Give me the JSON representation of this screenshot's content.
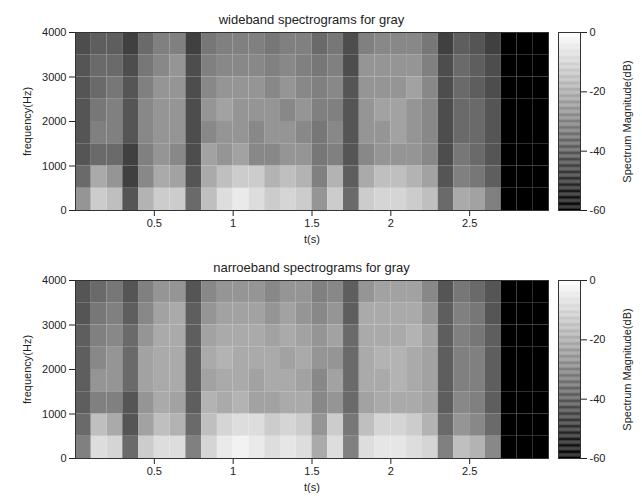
{
  "chart_data": [
    {
      "type": "heatmap",
      "title": "wideband spectrograms for gray",
      "x_label": "t(s)",
      "y_label": "frequency(Hz)",
      "xlim": [
        0,
        3
      ],
      "ylim": [
        0,
        4000
      ],
      "xticks": [
        0.5,
        1,
        1.5,
        2,
        2.5
      ],
      "yticks": [
        0,
        1000,
        2000,
        3000,
        4000
      ],
      "t_bins": [
        0,
        0.1,
        0.2,
        0.3,
        0.4,
        0.5,
        0.6,
        0.7,
        0.8,
        0.9,
        1,
        1.1,
        1.2,
        1.3,
        1.4,
        1.5,
        1.6,
        1.7,
        1.8,
        1.9,
        2,
        2.1,
        2.2,
        2.3,
        2.4,
        2.5,
        2.6,
        2.7,
        2.8,
        2.9,
        3
      ],
      "f_bins": [
        0,
        500,
        1000,
        1500,
        2000,
        2500,
        3000,
        3500,
        4000
      ],
      "cells": [
        [
          -25,
          -35,
          -40,
          -40,
          -40,
          -40,
          -40,
          -42
        ],
        [
          -12,
          -20,
          -35,
          -30,
          -32,
          -35,
          -35,
          -38
        ],
        [
          -15,
          -25,
          -35,
          -30,
          -30,
          -32,
          -35,
          -38
        ],
        [
          -40,
          -45,
          -45,
          -40,
          -40,
          -40,
          -42,
          -45
        ],
        [
          -18,
          -28,
          -30,
          -28,
          -28,
          -30,
          -32,
          -35
        ],
        [
          -12,
          -20,
          -25,
          -25,
          -25,
          -25,
          -28,
          -30
        ],
        [
          -12,
          -22,
          -28,
          -25,
          -25,
          -25,
          -25,
          -30
        ],
        [
          -35,
          -40,
          -42,
          -42,
          -42,
          -42,
          -42,
          -45
        ],
        [
          -15,
          -20,
          -22,
          -28,
          -25,
          -28,
          -30,
          -32
        ],
        [
          -8,
          -15,
          -25,
          -25,
          -22,
          -25,
          -28,
          -30
        ],
        [
          -5,
          -12,
          -22,
          -25,
          -25,
          -25,
          -28,
          -30
        ],
        [
          -8,
          -12,
          -28,
          -28,
          -25,
          -25,
          -28,
          -30
        ],
        [
          -12,
          -18,
          -28,
          -25,
          -25,
          -28,
          -30,
          -32
        ],
        [
          -10,
          -15,
          -25,
          -25,
          -28,
          -25,
          -28,
          -30
        ],
        [
          -12,
          -18,
          -25,
          -28,
          -25,
          -28,
          -30,
          -30
        ],
        [
          -25,
          -30,
          -32,
          -32,
          -30,
          -30,
          -32,
          -35
        ],
        [
          -12,
          -18,
          -30,
          -28,
          -30,
          -28,
          -30,
          -32
        ],
        [
          -35,
          -38,
          -40,
          -40,
          -40,
          -40,
          -42,
          -42
        ],
        [
          -12,
          -20,
          -28,
          -25,
          -25,
          -25,
          -25,
          -30
        ],
        [
          -10,
          -15,
          -25,
          -25,
          -22,
          -25,
          -25,
          -28
        ],
        [
          -10,
          -15,
          -25,
          -22,
          -22,
          -25,
          -25,
          -28
        ],
        [
          -12,
          -18,
          -25,
          -25,
          -25,
          -22,
          -25,
          -28
        ],
        [
          -15,
          -22,
          -28,
          -28,
          -28,
          -28,
          -30,
          -32
        ],
        [
          -35,
          -40,
          -42,
          -42,
          -42,
          -42,
          -42,
          -45
        ],
        [
          -20,
          -30,
          -32,
          -35,
          -35,
          -35,
          -35,
          -38
        ],
        [
          -22,
          -32,
          -35,
          -35,
          -35,
          -38,
          -38,
          -40
        ],
        [
          -30,
          -38,
          -40,
          -40,
          -40,
          -42,
          -42,
          -45
        ],
        [
          -60,
          -60,
          -60,
          -60,
          -60,
          -60,
          -60,
          -60
        ],
        [
          -60,
          -60,
          -60,
          -60,
          -60,
          -60,
          -60,
          -60
        ],
        [
          -60,
          -60,
          -60,
          -60,
          -60,
          -60,
          -60,
          -60
        ]
      ],
      "colorbar": {
        "label": "Spectrum Magnitude(dB)",
        "range": [
          -60,
          0
        ],
        "ticks": [
          0,
          -20,
          -40,
          -60
        ]
      }
    },
    {
      "type": "heatmap",
      "title": "narroeband spectrograms for gray",
      "x_label": "t(s)",
      "y_label": "frequency(Hz)",
      "xlim": [
        0,
        3
      ],
      "ylim": [
        0,
        4000
      ],
      "xticks": [
        0.5,
        1,
        1.5,
        2,
        2.5
      ],
      "yticks": [
        0,
        1000,
        2000,
        3000,
        4000
      ],
      "t_bins": [
        0,
        0.1,
        0.2,
        0.3,
        0.4,
        0.5,
        0.6,
        0.7,
        0.8,
        0.9,
        1,
        1.1,
        1.2,
        1.3,
        1.4,
        1.5,
        1.6,
        1.7,
        1.8,
        1.9,
        2,
        2.1,
        2.2,
        2.3,
        2.4,
        2.5,
        2.6,
        2.7,
        2.8,
        2.9,
        3
      ],
      "f_bins": [
        0,
        500,
        1000,
        1500,
        2000,
        2500,
        3000,
        3500,
        4000
      ],
      "cells": [
        [
          -30,
          -35,
          -38,
          -38,
          -38,
          -38,
          -40,
          -40
        ],
        [
          -8,
          -15,
          -30,
          -25,
          -28,
          -30,
          -32,
          -35
        ],
        [
          -10,
          -20,
          -30,
          -25,
          -25,
          -28,
          -30,
          -32
        ],
        [
          -35,
          -40,
          -40,
          -35,
          -35,
          -35,
          -38,
          -40
        ],
        [
          -12,
          -22,
          -25,
          -22,
          -22,
          -25,
          -28,
          -30
        ],
        [
          -8,
          -15,
          -20,
          -20,
          -20,
          -20,
          -22,
          -25
        ],
        [
          -8,
          -18,
          -22,
          -20,
          -20,
          -20,
          -20,
          -25
        ],
        [
          -30,
          -35,
          -38,
          -38,
          -38,
          -38,
          -38,
          -40
        ],
        [
          -10,
          -15,
          -18,
          -22,
          -20,
          -22,
          -25,
          -28
        ],
        [
          -5,
          -10,
          -20,
          -20,
          -18,
          -20,
          -22,
          -25
        ],
        [
          -3,
          -8,
          -18,
          -20,
          -20,
          -20,
          -22,
          -25
        ],
        [
          -5,
          -8,
          -22,
          -22,
          -20,
          -20,
          -22,
          -25
        ],
        [
          -8,
          -12,
          -22,
          -20,
          -20,
          -22,
          -25,
          -28
        ],
        [
          -6,
          -10,
          -20,
          -20,
          -22,
          -20,
          -22,
          -25
        ],
        [
          -8,
          -12,
          -20,
          -22,
          -20,
          -22,
          -25,
          -25
        ],
        [
          -20,
          -25,
          -28,
          -28,
          -25,
          -25,
          -28,
          -30
        ],
        [
          -8,
          -12,
          -25,
          -22,
          -25,
          -22,
          -25,
          -28
        ],
        [
          -30,
          -32,
          -35,
          -35,
          -35,
          -35,
          -38,
          -38
        ],
        [
          -8,
          -15,
          -22,
          -20,
          -20,
          -20,
          -20,
          -25
        ],
        [
          -6,
          -10,
          -20,
          -20,
          -18,
          -20,
          -20,
          -22
        ],
        [
          -6,
          -10,
          -20,
          -18,
          -18,
          -20,
          -20,
          -22
        ],
        [
          -8,
          -12,
          -20,
          -20,
          -20,
          -18,
          -20,
          -22
        ],
        [
          -10,
          -18,
          -22,
          -22,
          -22,
          -22,
          -25,
          -28
        ],
        [
          -30,
          -35,
          -38,
          -38,
          -38,
          -38,
          -38,
          -40
        ],
        [
          -15,
          -25,
          -28,
          -30,
          -30,
          -30,
          -30,
          -32
        ],
        [
          -18,
          -28,
          -30,
          -30,
          -30,
          -32,
          -32,
          -35
        ],
        [
          -28,
          -35,
          -38,
          -38,
          -38,
          -38,
          -40,
          -40
        ],
        [
          -60,
          -60,
          -60,
          -60,
          -60,
          -60,
          -60,
          -60
        ],
        [
          -60,
          -60,
          -60,
          -60,
          -60,
          -60,
          -60,
          -60
        ],
        [
          -60,
          -60,
          -60,
          -60,
          -60,
          -60,
          -60,
          -60
        ]
      ],
      "colorbar": {
        "label": "Spectrum Magnitude(dB)",
        "range": [
          -60,
          0
        ],
        "ticks": [
          0,
          -20,
          -40,
          -60
        ]
      }
    }
  ]
}
